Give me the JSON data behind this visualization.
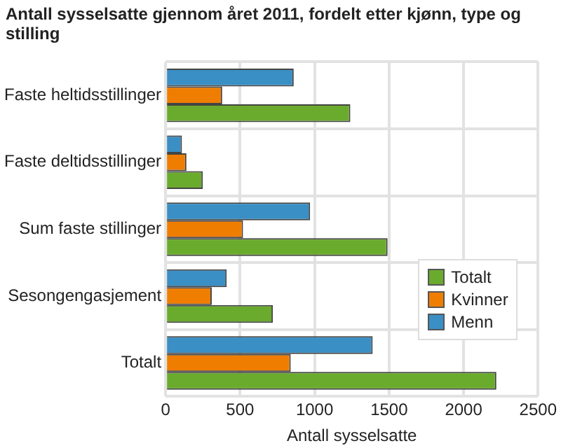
{
  "chart_data": {
    "type": "bar",
    "orientation": "horizontal",
    "title": "Antall sysselsatte gjennom året 2011, fordelt etter kjønn, type og stilling",
    "xlabel": "Antall sysselsatte",
    "categories": [
      "Faste heltidsstillinger",
      "Faste deltidsstillinger",
      "Sum faste stillinger",
      "Sesongengasjement",
      "Totalt"
    ],
    "series": [
      {
        "name": "Menn",
        "color": "#3a8fc4",
        "values": [
          860,
          110,
          970,
          410,
          1390
        ]
      },
      {
        "name": "Kvinner",
        "color": "#ef7d00",
        "values": [
          380,
          140,
          520,
          310,
          840
        ]
      },
      {
        "name": "Totalt",
        "color": "#6aab2e",
        "values": [
          1240,
          250,
          1490,
          720,
          2220
        ]
      }
    ],
    "xlim": [
      0,
      2500
    ],
    "xticks": [
      0,
      500,
      1000,
      1500,
      2000,
      2500
    ],
    "grid": true,
    "legend": "bottom right"
  }
}
